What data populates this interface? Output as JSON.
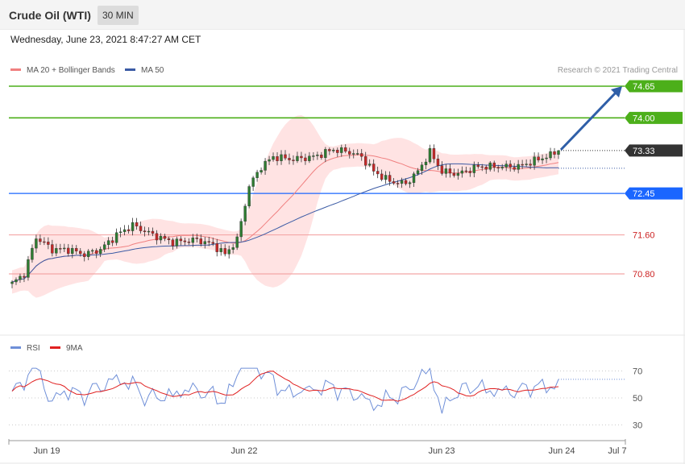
{
  "header": {
    "title": "Crude Oil (WTI)",
    "timeframe": "30 MIN"
  },
  "timestamp": "Wednesday, June 23, 2021 8:47:27 AM CET",
  "credit": "Research © 2021 Trading Central",
  "colors": {
    "up_candle": "#2e7d32",
    "down_candle": "#c62828",
    "ma20": "#f08080",
    "band_fill": "#ffd9d9",
    "ma50": "#3b5ba5",
    "resistance": "#4caf1a",
    "support": "#f4a6a6",
    "pivot": "#1a66ff",
    "current": "#333333",
    "arrow": "#2f5fa8",
    "rsi": "#6f8fd8",
    "rsi_ma": "#e02020"
  },
  "chart_data": [
    {
      "type": "candlestick",
      "ylim": [
        69.9,
        75.1
      ],
      "x_ticks": [
        "Jun 19",
        "Jun 22",
        "Jun 23",
        "Jun 24",
        "Jul 7"
      ],
      "legend": [
        {
          "name": "MA 20 + Bollinger Bands",
          "color": "#f08080"
        },
        {
          "name": "MA 50",
          "color": "#3b5ba5"
        }
      ],
      "levels": [
        {
          "value": 74.65,
          "label": "74.65",
          "kind": "resistance"
        },
        {
          "value": 74.0,
          "label": "74.00",
          "kind": "resistance"
        },
        {
          "value": 73.33,
          "label": "73.33",
          "kind": "current"
        },
        {
          "value": 72.45,
          "label": "72.45",
          "kind": "pivot"
        },
        {
          "value": 71.6,
          "label": "71.60",
          "kind": "support"
        },
        {
          "value": 70.8,
          "label": "70.80",
          "kind": "support"
        }
      ],
      "projection": {
        "from_price": 73.33,
        "to_price": 74.65
      }
    },
    {
      "type": "line",
      "legend": [
        {
          "name": "RSI",
          "color": "#6f8fd8"
        },
        {
          "name": "9MA",
          "color": "#e02020"
        }
      ],
      "ylim": [
        20,
        80
      ],
      "y_ticks": [
        "70",
        "50",
        "30"
      ]
    }
  ]
}
